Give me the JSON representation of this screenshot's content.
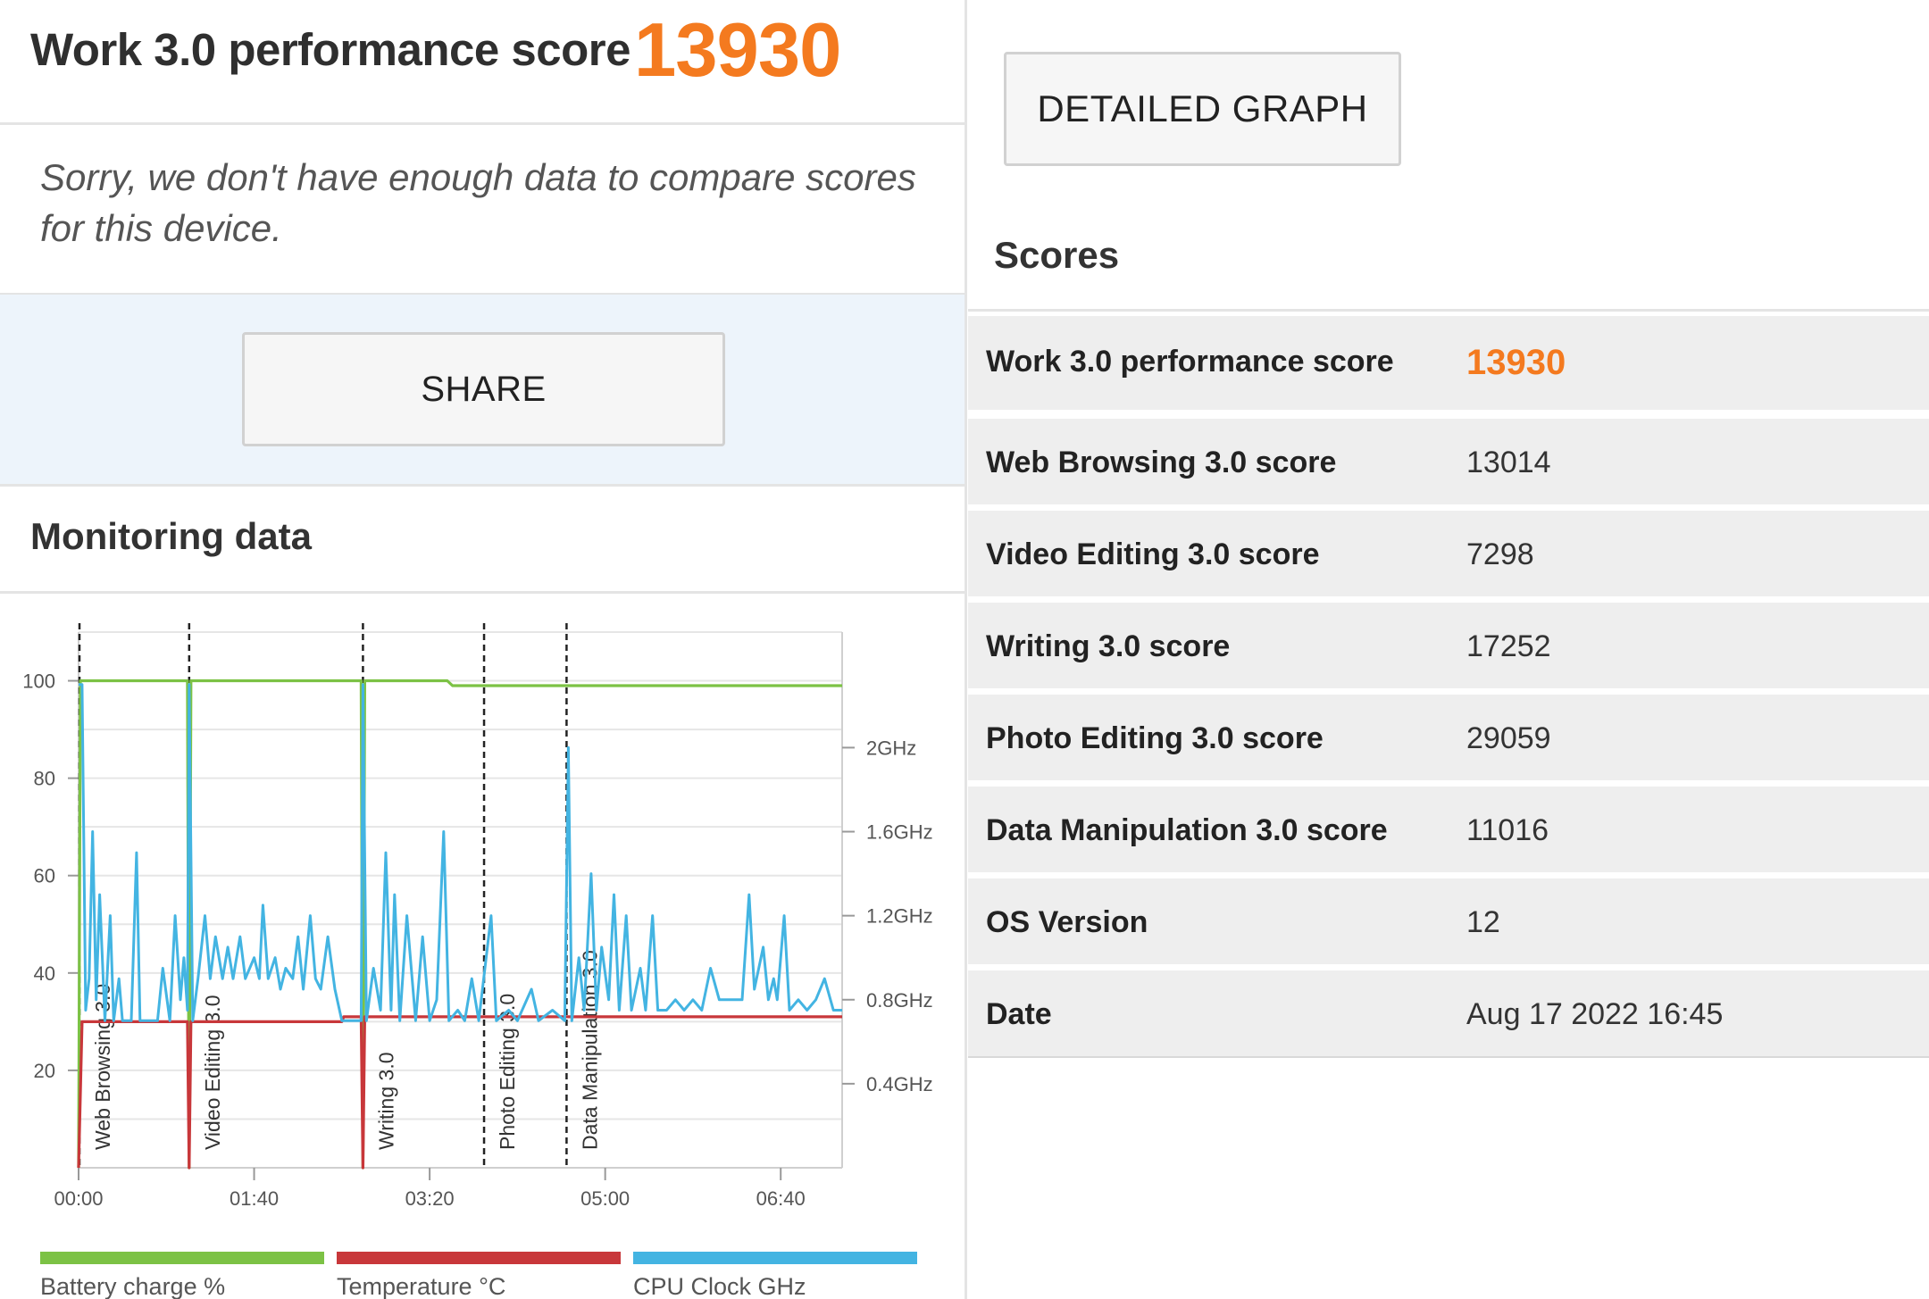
{
  "header": {
    "title": "Work 3.0 performance score",
    "score": "13930"
  },
  "compare_message": "Sorry, we don't have enough data to compare scores for this device.",
  "share_button": "SHARE",
  "detailed_graph_button": "DETAILED GRAPH",
  "monitoring": {
    "title": "Monitoring data",
    "legend": [
      {
        "label": "Battery charge %",
        "color": "#7cc245"
      },
      {
        "label": "Temperature °C",
        "color": "#c8373a"
      },
      {
        "label": "CPU Clock GHz",
        "color": "#43b4e2"
      }
    ]
  },
  "scores": {
    "title": "Scores",
    "rows": [
      {
        "label": "Work 3.0 performance score",
        "value": "13930"
      },
      {
        "label": "Web Browsing 3.0 score",
        "value": "13014"
      },
      {
        "label": "Video Editing 3.0 score",
        "value": "7298"
      },
      {
        "label": "Writing 3.0 score",
        "value": "17252"
      },
      {
        "label": "Photo Editing 3.0 score",
        "value": "29059"
      },
      {
        "label": "Data Manipulation 3.0 score",
        "value": "11016"
      },
      {
        "label": "OS Version",
        "value": "12"
      },
      {
        "label": "Date",
        "value": "Aug 17 2022 16:45"
      }
    ]
  },
  "chart_data": {
    "type": "line",
    "x_unit": "mm:ss",
    "x_range": [
      "00:00",
      "07:15"
    ],
    "x_ticks": [
      "00:00",
      "01:40",
      "03:20",
      "05:00",
      "06:40"
    ],
    "y_left_ticks": [
      "20",
      "40",
      "60",
      "80",
      "100"
    ],
    "y_left_range": [
      0,
      110
    ],
    "y_right_ticks": [
      "0.4GHz",
      "0.8GHz",
      "1.2GHz",
      "1.6GHz",
      "2GHz"
    ],
    "y_right_range": [
      0,
      2.55
    ],
    "grid": true,
    "markers": [
      {
        "label": "Web Browsing 3.0",
        "x": "00:00"
      },
      {
        "label": "Video Editing 3.0",
        "x": "01:03"
      },
      {
        "label": "Writing 3.0",
        "x": "02:42"
      },
      {
        "label": "Photo Editing 3.0",
        "x": "03:51"
      },
      {
        "label": "Data Manipulation 3.0",
        "x": "04:38"
      }
    ],
    "series": [
      {
        "name": "Battery charge %",
        "axis": "left",
        "points": [
          [
            "00:00",
            0
          ],
          [
            "00:01",
            100
          ],
          [
            "01:02",
            100
          ],
          [
            "01:03",
            0
          ],
          [
            "01:04",
            100
          ],
          [
            "02:41",
            100
          ],
          [
            "02:42",
            0
          ],
          [
            "02:43",
            100
          ],
          [
            "03:30",
            100
          ],
          [
            "03:33",
            99
          ],
          [
            "07:15",
            99
          ]
        ]
      },
      {
        "name": "Temperature °C",
        "axis": "left",
        "points": [
          [
            "00:00",
            0
          ],
          [
            "00:02",
            30
          ],
          [
            "01:02",
            30
          ],
          [
            "01:03",
            0
          ],
          [
            "01:04",
            30
          ],
          [
            "02:30",
            30
          ],
          [
            "02:31",
            31
          ],
          [
            "02:41",
            31
          ],
          [
            "02:42",
            0
          ],
          [
            "02:43",
            31
          ],
          [
            "07:15",
            31
          ]
        ]
      },
      {
        "name": "CPU Clock GHz",
        "axis": "right",
        "points": [
          [
            "00:00",
            2.3
          ],
          [
            "00:02",
            2.3
          ],
          [
            "00:04",
            0.75
          ],
          [
            "00:06",
            0.9
          ],
          [
            "00:08",
            1.6
          ],
          [
            "00:10",
            0.8
          ],
          [
            "00:12",
            1.3
          ],
          [
            "00:15",
            0.7
          ],
          [
            "00:18",
            1.2
          ],
          [
            "00:20",
            0.7
          ],
          [
            "00:23",
            0.9
          ],
          [
            "00:25",
            0.7
          ],
          [
            "00:30",
            0.7
          ],
          [
            "00:33",
            1.5
          ],
          [
            "00:35",
            0.7
          ],
          [
            "00:45",
            0.7
          ],
          [
            "00:48",
            0.95
          ],
          [
            "00:52",
            0.7
          ],
          [
            "00:55",
            1.2
          ],
          [
            "00:58",
            0.8
          ],
          [
            "01:00",
            1.0
          ],
          [
            "01:02",
            0.75
          ],
          [
            "01:03",
            2.3
          ],
          [
            "01:05",
            0.7
          ],
          [
            "01:08",
            0.9
          ],
          [
            "01:12",
            1.2
          ],
          [
            "01:15",
            0.9
          ],
          [
            "01:18",
            1.1
          ],
          [
            "01:22",
            0.9
          ],
          [
            "01:25",
            1.05
          ],
          [
            "01:28",
            0.9
          ],
          [
            "01:32",
            1.1
          ],
          [
            "01:35",
            0.9
          ],
          [
            "01:40",
            1.0
          ],
          [
            "01:43",
            0.9
          ],
          [
            "01:45",
            1.25
          ],
          [
            "01:48",
            0.9
          ],
          [
            "01:52",
            1.0
          ],
          [
            "01:55",
            0.85
          ],
          [
            "01:58",
            0.95
          ],
          [
            "02:02",
            0.9
          ],
          [
            "02:05",
            1.1
          ],
          [
            "02:08",
            0.85
          ],
          [
            "02:12",
            1.2
          ],
          [
            "02:15",
            0.9
          ],
          [
            "02:18",
            0.85
          ],
          [
            "02:22",
            1.1
          ],
          [
            "02:26",
            0.85
          ],
          [
            "02:30",
            0.7
          ],
          [
            "02:35",
            0.7
          ],
          [
            "02:41",
            0.7
          ],
          [
            "02:42",
            2.3
          ],
          [
            "02:44",
            0.7
          ],
          [
            "02:48",
            0.95
          ],
          [
            "02:52",
            0.75
          ],
          [
            "02:55",
            1.5
          ],
          [
            "02:58",
            0.75
          ],
          [
            "03:00",
            1.3
          ],
          [
            "03:03",
            0.7
          ],
          [
            "03:07",
            1.2
          ],
          [
            "03:12",
            0.7
          ],
          [
            "03:16",
            1.1
          ],
          [
            "03:20",
            0.7
          ],
          [
            "03:24",
            0.8
          ],
          [
            "03:28",
            1.6
          ],
          [
            "03:31",
            0.7
          ],
          [
            "03:36",
            0.75
          ],
          [
            "03:40",
            0.7
          ],
          [
            "03:44",
            0.9
          ],
          [
            "03:48",
            0.7
          ],
          [
            "03:55",
            1.2
          ],
          [
            "03:58",
            0.7
          ],
          [
            "04:05",
            0.75
          ],
          [
            "04:10",
            0.7
          ],
          [
            "04:18",
            0.85
          ],
          [
            "04:22",
            0.7
          ],
          [
            "04:30",
            0.75
          ],
          [
            "04:37",
            0.7
          ],
          [
            "04:39",
            2.0
          ],
          [
            "04:41",
            0.7
          ],
          [
            "04:45",
            1.0
          ],
          [
            "04:48",
            0.75
          ],
          [
            "04:52",
            1.4
          ],
          [
            "04:55",
            0.75
          ],
          [
            "04:58",
            1.05
          ],
          [
            "05:02",
            0.8
          ],
          [
            "05:05",
            1.3
          ],
          [
            "05:08",
            0.75
          ],
          [
            "05:12",
            1.2
          ],
          [
            "05:15",
            0.75
          ],
          [
            "05:20",
            0.95
          ],
          [
            "05:23",
            0.75
          ],
          [
            "05:27",
            1.2
          ],
          [
            "05:30",
            0.75
          ],
          [
            "05:35",
            0.75
          ],
          [
            "05:40",
            0.8
          ],
          [
            "05:45",
            0.75
          ],
          [
            "05:50",
            0.8
          ],
          [
            "05:55",
            0.75
          ],
          [
            "06:00",
            0.95
          ],
          [
            "06:05",
            0.8
          ],
          [
            "06:12",
            0.8
          ],
          [
            "06:18",
            0.8
          ],
          [
            "06:22",
            1.3
          ],
          [
            "06:25",
            0.85
          ],
          [
            "06:30",
            1.05
          ],
          [
            "06:33",
            0.8
          ],
          [
            "06:36",
            0.9
          ],
          [
            "06:38",
            0.8
          ],
          [
            "06:42",
            1.2
          ],
          [
            "06:45",
            0.75
          ],
          [
            "06:50",
            0.8
          ],
          [
            "06:55",
            0.75
          ],
          [
            "07:00",
            0.8
          ],
          [
            "07:05",
            0.9
          ],
          [
            "07:10",
            0.75
          ],
          [
            "07:15",
            0.75
          ]
        ]
      }
    ]
  }
}
